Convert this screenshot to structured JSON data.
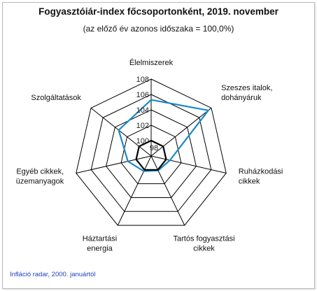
{
  "chart_data": {
    "type": "radar",
    "title": "Fogyasztóiár-index főcsoportonként, 2019. november",
    "subtitle": "(az előző év azonos időszaka = 100,0%)",
    "categories": [
      [
        "Élelmiszerek"
      ],
      [
        "Szeszes italok,",
        "dohányáruk"
      ],
      [
        "Ruházkodási",
        "cikkek"
      ],
      [
        "Tartós fogyasztási",
        "cikkek"
      ],
      [
        "Háztartási",
        "energia"
      ],
      [
        "Egyéb cikkek,",
        "üzemanyagok"
      ],
      [
        "Szolgáltatások"
      ]
    ],
    "scale": {
      "min": 98,
      "max": 108,
      "step": 2
    },
    "ticks": [
      "98",
      "100",
      "102",
      "104",
      "106",
      "108"
    ],
    "series": [
      {
        "color": "#1a8ac4",
        "values": [
          105.3,
          107.5,
          100.5,
          100.1,
          100.2,
          101.1,
          103.4
        ]
      },
      {
        "color": "#000000",
        "values": [
          100.0,
          100.0,
          100.0,
          100.0,
          100.0,
          100.0,
          100.0
        ]
      }
    ],
    "grid_color": "#000000"
  },
  "source": "Infláció radar, 2000. januártól"
}
